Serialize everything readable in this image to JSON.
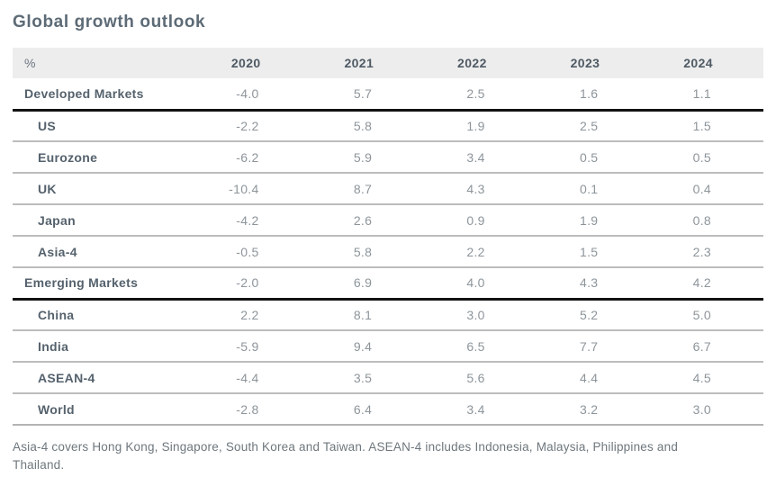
{
  "title": "Global growth outlook",
  "table": {
    "header": {
      "unit_label": "%",
      "years": [
        "2020",
        "2021",
        "2022",
        "2023",
        "2024"
      ]
    },
    "rows": [
      {
        "label": "Developed Markets",
        "indent": false,
        "separator": "thick",
        "values": [
          "-4.0",
          "5.7",
          "2.5",
          "1.6",
          "1.1"
        ]
      },
      {
        "label": "US",
        "indent": true,
        "separator": "thin",
        "values": [
          "-2.2",
          "5.8",
          "1.9",
          "2.5",
          "1.5"
        ]
      },
      {
        "label": "Eurozone",
        "indent": true,
        "separator": "thin",
        "values": [
          "-6.2",
          "5.9",
          "3.4",
          "0.5",
          "0.5"
        ]
      },
      {
        "label": "UK",
        "indent": true,
        "separator": "thin",
        "values": [
          "-10.4",
          "8.7",
          "4.3",
          "0.1",
          "0.4"
        ]
      },
      {
        "label": "Japan",
        "indent": true,
        "separator": "thin",
        "values": [
          "-4.2",
          "2.6",
          "0.9",
          "1.9",
          "0.8"
        ]
      },
      {
        "label": "Asia-4",
        "indent": true,
        "separator": "thin",
        "values": [
          "-0.5",
          "5.8",
          "2.2",
          "1.5",
          "2.3"
        ]
      },
      {
        "label": "Emerging Markets",
        "indent": false,
        "separator": "thick",
        "values": [
          "-2.0",
          "6.9",
          "4.0",
          "4.3",
          "4.2"
        ]
      },
      {
        "label": "China",
        "indent": true,
        "separator": "thin",
        "values": [
          "2.2",
          "8.1",
          "3.0",
          "5.2",
          "5.0"
        ]
      },
      {
        "label": "India",
        "indent": true,
        "separator": "thin",
        "values": [
          "-5.9",
          "9.4",
          "6.5",
          "7.7",
          "6.7"
        ]
      },
      {
        "label": "ASEAN-4",
        "indent": true,
        "separator": "thin",
        "values": [
          "-4.4",
          "3.5",
          "5.6",
          "4.4",
          "4.5"
        ]
      },
      {
        "label": "World",
        "indent": true,
        "separator": "end",
        "values": [
          "-2.8",
          "6.4",
          "3.4",
          "3.2",
          "3.0"
        ]
      }
    ]
  },
  "footnote": "Asia-4 covers Hong Kong, Singapore, South Korea and Taiwan. ASEAN-4 includes Indonesia, Malaysia, Philippines and Thailand.",
  "colors": {
    "title": "#5d6b76",
    "row_label": "#55626d",
    "year_header": "#4f5a64",
    "value": "#8d959b",
    "header_background": "#ededed",
    "thin_rule": "#bdbdbd",
    "thick_rule": "#121212",
    "footnote": "#6e777d"
  },
  "chart_data": {
    "type": "table",
    "title": "Global growth outlook",
    "unit": "%",
    "columns": [
      "%",
      "2020",
      "2021",
      "2022",
      "2023",
      "2024"
    ],
    "rows": [
      {
        "label": "Developed Markets",
        "group": true,
        "values": [
          -4.0,
          5.7,
          2.5,
          1.6,
          1.1
        ]
      },
      {
        "label": "US",
        "group": false,
        "values": [
          -2.2,
          5.8,
          1.9,
          2.5,
          1.5
        ]
      },
      {
        "label": "Eurozone",
        "group": false,
        "values": [
          -6.2,
          5.9,
          3.4,
          0.5,
          0.5
        ]
      },
      {
        "label": "UK",
        "group": false,
        "values": [
          -10.4,
          8.7,
          4.3,
          0.1,
          0.4
        ]
      },
      {
        "label": "Japan",
        "group": false,
        "values": [
          -4.2,
          2.6,
          0.9,
          1.9,
          0.8
        ]
      },
      {
        "label": "Asia-4",
        "group": false,
        "values": [
          -0.5,
          5.8,
          2.2,
          1.5,
          2.3
        ]
      },
      {
        "label": "Emerging Markets",
        "group": true,
        "values": [
          -2.0,
          6.9,
          4.0,
          4.3,
          4.2
        ]
      },
      {
        "label": "China",
        "group": false,
        "values": [
          2.2,
          8.1,
          3.0,
          5.2,
          5.0
        ]
      },
      {
        "label": "India",
        "group": false,
        "values": [
          -5.9,
          9.4,
          6.5,
          7.7,
          6.7
        ]
      },
      {
        "label": "ASEAN-4",
        "group": false,
        "values": [
          -4.4,
          3.5,
          5.6,
          4.4,
          4.5
        ]
      },
      {
        "label": "World",
        "group": false,
        "values": [
          -2.8,
          6.4,
          3.4,
          3.2,
          3.0
        ]
      }
    ],
    "footnote": "Asia-4 covers Hong Kong, Singapore, South Korea and Taiwan. ASEAN-4 includes Indonesia, Malaysia, Philippines and Thailand."
  }
}
